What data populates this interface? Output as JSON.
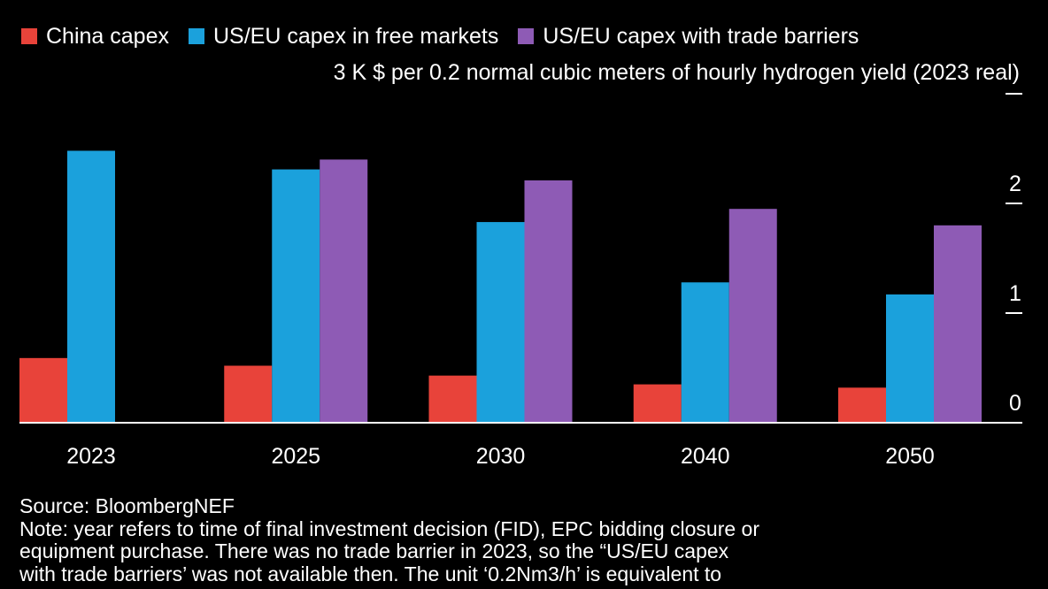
{
  "chart_data": {
    "type": "bar",
    "categories": [
      "2023",
      "2025",
      "2030",
      "2040",
      "2050"
    ],
    "series": [
      {
        "name": "China capex",
        "color": "#e8433a",
        "values": [
          0.59,
          0.52,
          0.43,
          0.35,
          0.32
        ]
      },
      {
        "name": "US/EU capex in free markets",
        "color": "#1ba1dc",
        "values": [
          2.48,
          2.31,
          1.83,
          1.28,
          1.17
        ]
      },
      {
        "name": "US/EU capex with trade barriers",
        "color": "#8e5bb5",
        "values": [
          null,
          2.4,
          2.21,
          1.95,
          1.8
        ]
      }
    ],
    "ylabel": "3 K $ per 0.2 normal cubic meters of hourly hydrogen yield (2023 real)",
    "ylim": [
      0,
      3
    ],
    "yticks": [
      0,
      1,
      2,
      3
    ],
    "ytick_labels": [
      "0",
      "1",
      "2",
      ""
    ],
    "legend_position": "top-left",
    "axis_color": "#ffffff"
  },
  "footer": {
    "source": "Source: BloombergNEF",
    "note_lines": [
      "Note: year refers to time of final investment decision (FID), EPC bidding closure or",
      "equipment purchase. There was no trade barrier in 2023, so the “US/EU capex",
      "with trade barriers’ was not available then. The unit ‘0.2Nm3/h’ is equivalent to"
    ]
  }
}
